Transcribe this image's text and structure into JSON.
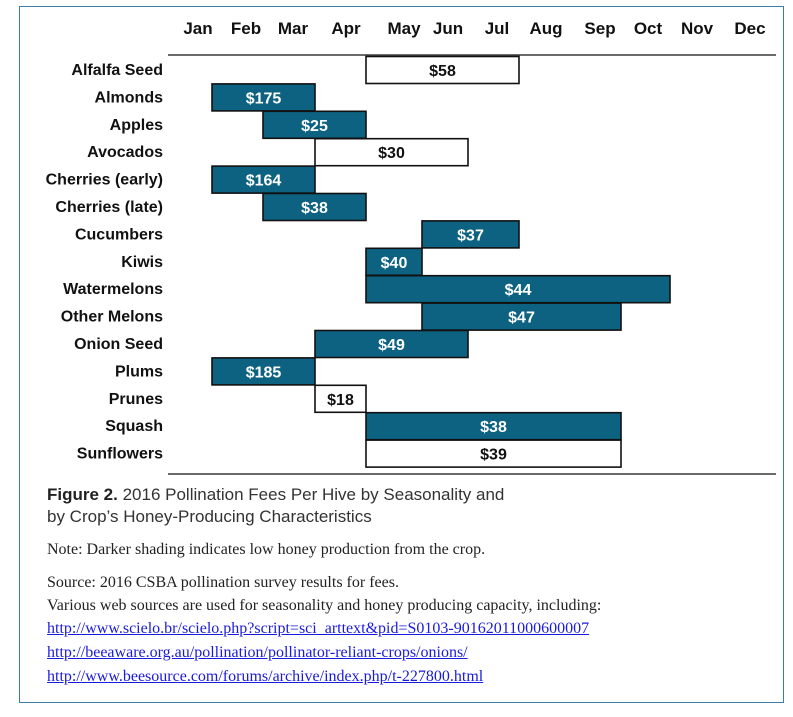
{
  "chart_data": {
    "type": "gantt-bar",
    "months": [
      "Jan",
      "Feb",
      "Mar",
      "Apr",
      "May",
      "Jun",
      "Jul",
      "Aug",
      "Sep",
      "Oct",
      "Nov",
      "Dec"
    ],
    "rows": [
      {
        "crop": "Alfalfa Seed",
        "start": "Apr/May",
        "end": "Jul",
        "label": "$58",
        "fee": 58,
        "low_honey": false
      },
      {
        "crop": "Almonds",
        "start": "Jan",
        "end": "Feb/Mar",
        "label": "$175",
        "fee": 175,
        "low_honey": true
      },
      {
        "crop": "Apples",
        "start": "Feb",
        "end": "Apr",
        "label": "$25",
        "fee": 25,
        "low_honey": true
      },
      {
        "crop": "Avocados",
        "start": "Mar",
        "end": "Jun",
        "label": "$30",
        "fee": 30,
        "low_honey": false
      },
      {
        "crop": "Cherries (early)",
        "start": "Jan",
        "end": "Feb/Mar",
        "label": "$164",
        "fee": 164,
        "low_honey": true
      },
      {
        "crop": "Cherries (late)",
        "start": "Feb",
        "end": "Apr",
        "label": "$38",
        "fee": 38,
        "low_honey": true
      },
      {
        "crop": "Cucumbers",
        "start": "May",
        "end": "Jul",
        "label": "$37",
        "fee": 37,
        "low_honey": true
      },
      {
        "crop": "Kiwis",
        "start": "Apr/May",
        "end": "May",
        "label": "$40",
        "fee": 40,
        "low_honey": true
      },
      {
        "crop": "Watermelons",
        "start": "Apr/May",
        "end": "Oct",
        "label": "$44",
        "fee": 44,
        "low_honey": true
      },
      {
        "crop": "Other Melons",
        "start": "May",
        "end": "Sep",
        "label": "$47",
        "fee": 47,
        "low_honey": true
      },
      {
        "crop": "Onion Seed",
        "start": "Mar",
        "end": "Jun",
        "label": "$49",
        "fee": 49,
        "low_honey": true
      },
      {
        "crop": "Plums",
        "start": "Jan",
        "end": "Feb/Mar",
        "label": "$185",
        "fee": 185,
        "low_honey": true
      },
      {
        "crop": "Prunes",
        "start": "Mar",
        "end": "Apr",
        "label": "$18",
        "fee": 18,
        "low_honey": false
      },
      {
        "crop": "Squash",
        "start": "Apr/May",
        "end": "Sep",
        "label": "$38",
        "fee": 38,
        "low_honey": true
      },
      {
        "crop": "Sunflowers",
        "start": "Apr/May",
        "end": "Sep",
        "label": "$39",
        "fee": 39,
        "low_honey": false
      }
    ]
  },
  "colors": {
    "dark_bar": "#0d6282",
    "light_bar": "#ffffff",
    "bar_border": "#111111",
    "frame_border": "#3d7ea6",
    "link": "#1a1adb"
  },
  "caption": {
    "figure_label": "Figure 2.",
    "line1_rest": "2016 Pollination Fees Per Hive by Seasonality and",
    "line2": "by Crop’s Honey-Producing Characteristics"
  },
  "note": "Note: Darker shading indicates low honey production from the crop.",
  "source": {
    "line1": "Source: 2016 CSBA pollination survey results for fees.",
    "line2": "Various web sources are used for seasonality and honey producing capacity, including:"
  },
  "links": [
    "http://www.scielo.br/scielo.php?script=sci_arttext&pid=S0103-90162011000600007",
    "http://beeaware.org.au/pollination/pollinator-reliant-crops/onions/",
    "http://www.beesource.com/forums/archive/index.php/t-227800.html"
  ]
}
